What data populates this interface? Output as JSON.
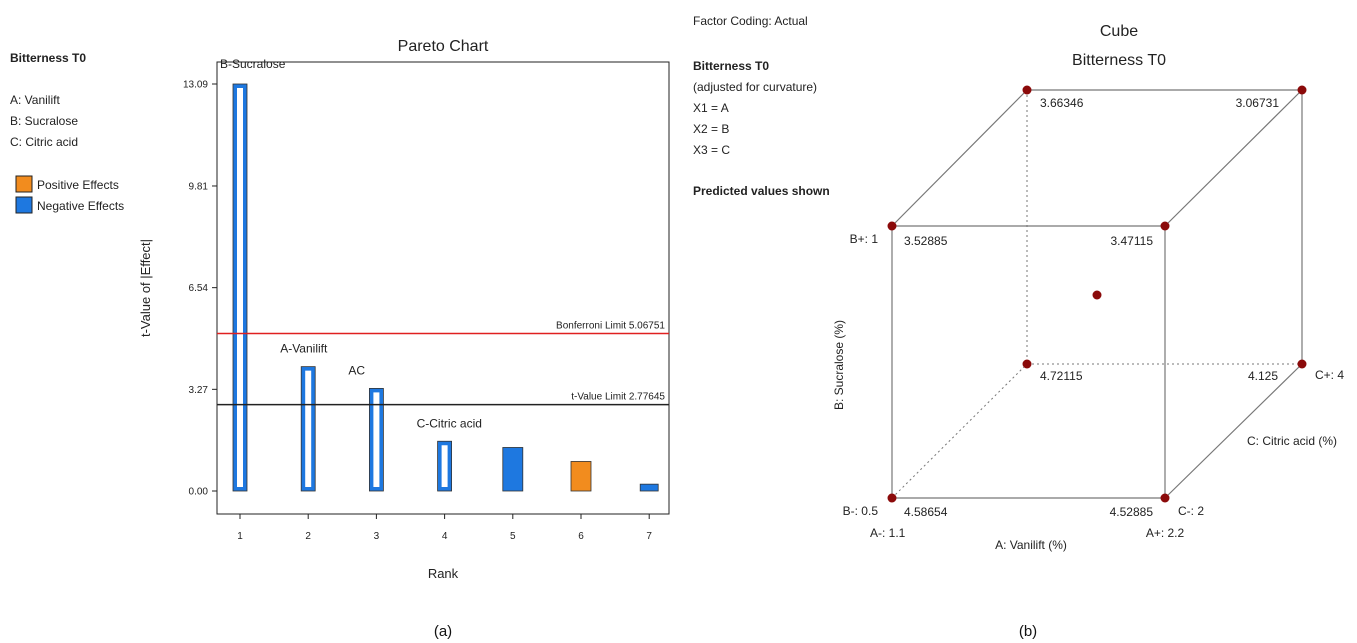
{
  "colors": {
    "positive": "#F28C1E",
    "negative": "#1E78E0",
    "positive_text": "#F28C1E",
    "negative_text": "#1E78E0",
    "bonferroni": "#E02020",
    "tlimit": "#222222",
    "point": "#8B0A0A"
  },
  "pareto": {
    "response_heading": "Bitterness T0",
    "factors": [
      "A: Vanilift",
      "B: Sucralose",
      "C: Citric acid"
    ],
    "legend": {
      "positive": "Positive Effects",
      "negative": "Negative Effects"
    },
    "bonferroni_label": "Bonferroni Limit 5.06751",
    "tlimit_label": "t-Value Limit 2.77645",
    "caption": "(a)"
  },
  "cube": {
    "factor_coding": "Factor Coding: Actual",
    "response_heading": "Bitterness T0",
    "subtitle_lines": [
      "(adjusted for curvature)",
      "X1 = A",
      "X2 = B",
      "X3 = C"
    ],
    "predicted_note": "Predicted values shown",
    "title_line1": "Cube",
    "title_line2": "Bitterness T0",
    "values": {
      "back_top_left": "3.66346",
      "back_top_right": "3.06731",
      "front_top_left": "3.52885",
      "front_top_right": "3.47115",
      "back_bottom_left": "4.72115",
      "back_bottom_right": "4.125",
      "front_bottom_left": "4.58654",
      "front_bottom_right": "4.52885"
    },
    "labels": {
      "b_plus": "B+: 1",
      "b_minus": "B-: 0.5",
      "a_minus": "A-: 1.1",
      "a_plus": "A+: 2.2",
      "c_minus": "C-: 2",
      "c_plus": "C+: 4",
      "x_axis": "A: Vanilift (%)",
      "y_axis": "B: Sucralose (%)",
      "z_axis": "C: Citric acid (%)"
    },
    "caption": "(b)"
  },
  "chart_data": [
    {
      "type": "bar",
      "title": "Pareto Chart",
      "xlabel": "Rank",
      "ylabel": "t-Value of |Effect|",
      "ylim": [
        0,
        13.09
      ],
      "yticks": [
        "0.00",
        "3.27",
        "6.54",
        "9.81",
        "13.09"
      ],
      "categories": [
        "1",
        "2",
        "3",
        "4",
        "5",
        "6",
        "7"
      ],
      "values": [
        13.09,
        4.0,
        3.3,
        1.6,
        1.4,
        0.95,
        0.22
      ],
      "bar_labels": [
        "B-Sucralose",
        "A-Vanilift",
        "AC",
        "C-Citric acid",
        "",
        "",
        ""
      ],
      "effect_sign": [
        "negative",
        "negative",
        "negative",
        "negative",
        "negative",
        "positive",
        "negative"
      ],
      "hollow": [
        true,
        true,
        true,
        true,
        false,
        false,
        false
      ],
      "reference_lines": [
        {
          "label": "Bonferroni Limit 5.06751",
          "value": 5.06751
        },
        {
          "label": "t-Value Limit 2.77645",
          "value": 2.77645
        }
      ],
      "grid": false,
      "legend": "left"
    },
    {
      "type": "scatter",
      "title": "Cube",
      "subtitle": "Bitterness T0",
      "xlabel": "A: Vanilift (%)",
      "ylabel": "B: Sucralose (%)",
      "zlabel": "C: Citric acid (%)",
      "x_levels": [
        "A-: 1.1",
        "A+: 2.2"
      ],
      "y_levels": [
        "B-: 0.5",
        "B+: 1"
      ],
      "z_levels": [
        "C-: 2",
        "C+: 4"
      ],
      "points": [
        {
          "A": 1.1,
          "B": 0.5,
          "C": 2,
          "value": 4.58654
        },
        {
          "A": 2.2,
          "B": 0.5,
          "C": 2,
          "value": 4.52885
        },
        {
          "A": 1.1,
          "B": 1,
          "C": 2,
          "value": 3.52885
        },
        {
          "A": 2.2,
          "B": 1,
          "C": 2,
          "value": 3.47115
        },
        {
          "A": 1.1,
          "B": 0.5,
          "C": 4,
          "value": 4.72115
        },
        {
          "A": 2.2,
          "B": 0.5,
          "C": 4,
          "value": 4.125
        },
        {
          "A": 1.1,
          "B": 1,
          "C": 4,
          "value": 3.66346
        },
        {
          "A": 2.2,
          "B": 1,
          "C": 4,
          "value": 3.06731
        },
        {
          "A": 1.65,
          "B": 0.75,
          "C": 3,
          "value": null
        }
      ]
    }
  ]
}
